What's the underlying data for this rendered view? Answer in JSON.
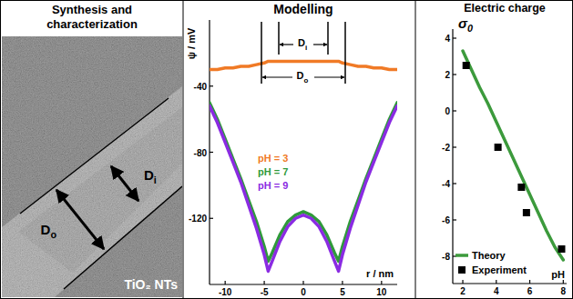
{
  "image_panel": {
    "title": "Synthesis and characterization",
    "label": "TiO₂ NTs",
    "dimensions": [
      {
        "main": "D",
        "sub": "o"
      },
      {
        "main": "D",
        "sub": "i"
      }
    ]
  },
  "chart_data": [
    {
      "type": "line",
      "title": "Modelling",
      "x_label": "r / nm",
      "y_label": "ψ / mV",
      "x": [
        -12,
        -11,
        -10,
        -9,
        -8,
        -7,
        -6,
        -5,
        -4.5,
        -4,
        -3,
        -2,
        -1,
        0,
        1,
        2,
        3,
        4,
        4.5,
        5,
        6,
        7,
        8,
        9,
        10,
        11,
        12
      ],
      "xlim": [
        -12,
        12
      ],
      "xticks": [
        -10,
        -5,
        0,
        5,
        10
      ],
      "ylim": [
        -160,
        0
      ],
      "yticks": [
        -120,
        -80,
        -40
      ],
      "legend": "center",
      "annotations": [
        {
          "main": "D",
          "sub": "i"
        },
        {
          "main": "D",
          "sub": "o"
        }
      ],
      "series": [
        {
          "name": "pH = 3",
          "color": "#f07a26",
          "values": [
            -30,
            -30,
            -29,
            -29,
            -28,
            -28,
            -27,
            -26,
            -25,
            -25,
            -25,
            -25,
            -25,
            -25,
            -25,
            -25,
            -25,
            -25,
            -25,
            -26,
            -27,
            -28,
            -28,
            -29,
            -29,
            -30,
            -30
          ]
        },
        {
          "name": "pH = 7",
          "color": "#2f9a3a",
          "values": [
            -50,
            -60,
            -72,
            -84,
            -96,
            -109,
            -122,
            -137,
            -146,
            -141,
            -130,
            -122,
            -118,
            -116,
            -118,
            -122,
            -130,
            -141,
            -146,
            -137,
            -122,
            -109,
            -96,
            -84,
            -72,
            -60,
            -50
          ]
        },
        {
          "name": "pH = 9",
          "color": "#8a2be2",
          "values": [
            -52,
            -62,
            -74,
            -86,
            -98,
            -112,
            -126,
            -142,
            -152,
            -146,
            -134,
            -125,
            -120,
            -118,
            -120,
            -125,
            -134,
            -146,
            -152,
            -142,
            -126,
            -112,
            -98,
            -86,
            -74,
            -62,
            -52
          ]
        }
      ]
    },
    {
      "type": "line",
      "title": "Electric charge",
      "x_label": "pH",
      "y_label": {
        "main": "σ",
        "sub": "0"
      },
      "xlim": [
        1.4,
        8.2
      ],
      "xticks": [
        2,
        4,
        6,
        8
      ],
      "ylim": [
        -9.5,
        4.5
      ],
      "yticks": [
        -8,
        -6,
        -4,
        -2,
        0,
        2,
        4
      ],
      "legend": "lower left",
      "series": [
        {
          "name": "Theory",
          "type": "line",
          "color": "#3c9a3c",
          "x": [
            2,
            2.5,
            3,
            3.5,
            4,
            4.5,
            5,
            5.5,
            6,
            6.5,
            7,
            7.5,
            8
          ],
          "values": [
            3.3,
            2.3,
            1.3,
            0.4,
            -0.6,
            -1.6,
            -2.6,
            -3.6,
            -4.6,
            -5.6,
            -6.6,
            -7.5,
            -8.2
          ]
        },
        {
          "name": "Experiment",
          "type": "scatter",
          "color": "#000000",
          "marker": "square",
          "x": [
            2.2,
            4.1,
            5.5,
            5.8,
            7.9
          ],
          "values": [
            2.5,
            -2.0,
            -4.2,
            -5.6,
            -7.6
          ]
        }
      ]
    }
  ]
}
